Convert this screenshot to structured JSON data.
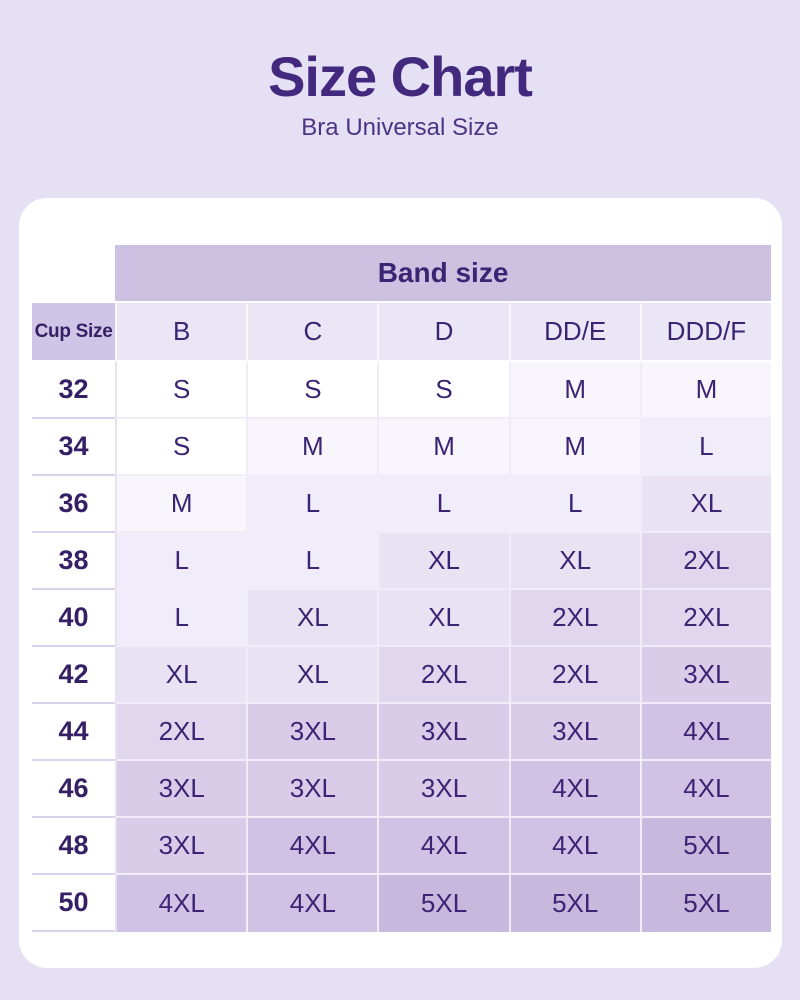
{
  "header": {
    "title": "Size Chart",
    "subtitle": "Bra Universal Size"
  },
  "chart_data": {
    "type": "table",
    "title": "Size Chart",
    "subtitle": "Bra Universal Size",
    "band_group_label": "Band size",
    "cup_label": "Cup Size",
    "band_columns": [
      "B",
      "C",
      "D",
      "DD/E",
      "DDD/F"
    ],
    "cup_rows": [
      "32",
      "34",
      "36",
      "38",
      "40",
      "42",
      "44",
      "46",
      "48",
      "50"
    ],
    "cells": [
      [
        "S",
        "S",
        "S",
        "M",
        "M"
      ],
      [
        "S",
        "M",
        "M",
        "M",
        "L"
      ],
      [
        "M",
        "L",
        "L",
        "L",
        "XL"
      ],
      [
        "L",
        "L",
        "XL",
        "XL",
        "2XL"
      ],
      [
        "L",
        "XL",
        "XL",
        "2XL",
        "2XL"
      ],
      [
        "XL",
        "XL",
        "2XL",
        "2XL",
        "3XL"
      ],
      [
        "2XL",
        "3XL",
        "3XL",
        "3XL",
        "4XL"
      ],
      [
        "3XL",
        "3XL",
        "3XL",
        "4XL",
        "4XL"
      ],
      [
        "3XL",
        "4XL",
        "4XL",
        "4XL",
        "5XL"
      ],
      [
        "4XL",
        "4XL",
        "5XL",
        "5XL",
        "5XL"
      ]
    ]
  },
  "style": {
    "size_shades": {
      "S": "#FFFFFF",
      "M": "#F8F5FC",
      "L": "#F1ECF9",
      "XL": "#E8E2F3",
      "2XL": "#E0D7EE",
      "3XL": "#D8CCE9",
      "4XL": "#D0C2E4",
      "5XL": "#C7B8DE"
    },
    "colors": {
      "page_background": "#E6E0F5",
      "card_background": "#FFFFFF",
      "band_header_background": "#CCC1E1",
      "cup_header_background": "#CFC5E6",
      "column_header_background": "#EBE6F5",
      "text": "#3A2473",
      "title": "#43297D",
      "subtitle": "#4B3484"
    }
  }
}
